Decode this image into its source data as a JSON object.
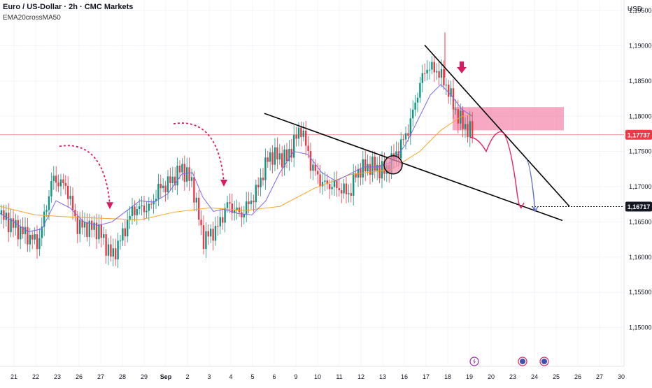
{
  "header": {
    "title": "Euro / US-Dollar · 2h · CMC Markets",
    "indicator": "EMA20crossMA50",
    "currency": "USD"
  },
  "colors": {
    "up": "#089981",
    "down": "#f23645",
    "ema": "#7b68ee",
    "ma": "#f5a623",
    "zone": "#f06292",
    "arrow": "#d81b60",
    "path_pink": "#e91e63",
    "path_blue": "#5c6bc0"
  },
  "chart_data": {
    "type": "candlestick",
    "instrument": "Euro / US-Dollar",
    "timeframe": "2h",
    "ylim": [
      1.1445,
      1.1965
    ],
    "y_ticks": [
      "1,19500",
      "1,19000",
      "1,18500",
      "1,18000",
      "1,17500",
      "1,17000",
      "1,16500",
      "1,16000",
      "1,15500",
      "1,15000"
    ],
    "x_ticks": [
      "21",
      "22",
      "23",
      "26",
      "27",
      "28",
      "29",
      "Sep",
      "2",
      "3",
      "4",
      "5",
      "6",
      "9",
      "10",
      "11",
      "12",
      "13",
      "16",
      "17",
      "18",
      "19",
      "20",
      "23",
      "24",
      "25",
      "26",
      "27",
      "30"
    ],
    "price_tags": [
      {
        "label": "1,17737",
        "value": 1.17737,
        "style": "red"
      },
      {
        "label": "1,16717",
        "value": 1.16717,
        "style": "black"
      }
    ],
    "current_price": 1.17737,
    "target_price": 1.16717,
    "ema20": [
      [
        0,
        1.1662
      ],
      [
        20,
        1.165
      ],
      [
        40,
        1.1636
      ],
      [
        60,
        1.164
      ],
      [
        80,
        1.168
      ],
      [
        100,
        1.167
      ],
      [
        120,
        1.165
      ],
      [
        140,
        1.1645
      ],
      [
        160,
        1.165
      ],
      [
        180,
        1.1665
      ],
      [
        200,
        1.168
      ],
      [
        220,
        1.1678
      ],
      [
        240,
        1.169
      ],
      [
        260,
        1.1718
      ],
      [
        275,
        1.172
      ],
      [
        290,
        1.1685
      ],
      [
        305,
        1.1665
      ],
      [
        320,
        1.1668
      ],
      [
        340,
        1.1662
      ],
      [
        360,
        1.166
      ],
      [
        380,
        1.168
      ],
      [
        400,
        1.172
      ],
      [
        420,
        1.175
      ],
      [
        440,
        1.1746
      ],
      [
        460,
        1.172
      ],
      [
        480,
        1.1708
      ],
      [
        500,
        1.1718
      ],
      [
        520,
        1.1728
      ],
      [
        540,
        1.1728
      ],
      [
        560,
        1.1735
      ],
      [
        580,
        1.176
      ],
      [
        600,
        1.18
      ],
      [
        615,
        1.183
      ],
      [
        630,
        1.1845
      ],
      [
        645,
        1.183
      ],
      [
        660,
        1.181
      ],
      [
        675,
        1.18
      ]
    ],
    "ma50": [
      [
        0,
        1.1672
      ],
      [
        50,
        1.166
      ],
      [
        100,
        1.1657
      ],
      [
        150,
        1.1655
      ],
      [
        200,
        1.1653
      ],
      [
        250,
        1.1664
      ],
      [
        300,
        1.167
      ],
      [
        350,
        1.1666
      ],
      [
        400,
        1.1672
      ],
      [
        450,
        1.1698
      ],
      [
        500,
        1.1717
      ],
      [
        540,
        1.1722
      ],
      [
        560,
        1.1725
      ],
      [
        600,
        1.175
      ],
      [
        630,
        1.178
      ],
      [
        660,
        1.18
      ],
      [
        675,
        1.1802
      ]
    ],
    "zone": {
      "x_from": 647,
      "x_to": 806,
      "y_low": 1.178,
      "y_high": 1.1813
    },
    "triangle_lines": [
      {
        "from": [
          378,
          1.1804
        ],
        "to": [
          804,
          1.1652
        ]
      },
      {
        "from": [
          607,
          1.1901
        ],
        "to": [
          814,
          1.1672
        ]
      }
    ],
    "projection_paths": [
      {
        "color": "pink",
        "points": [
          [
            672,
            1.177
          ],
          [
            695,
            1.175
          ],
          [
            716,
            1.1778
          ],
          [
            738,
            1.17
          ],
          [
            745,
            1.167
          ]
        ]
      },
      {
        "color": "blue",
        "points": [
          [
            751,
            1.174
          ],
          [
            765,
            1.1665
          ]
        ]
      }
    ],
    "highlight_circle": {
      "x": 562,
      "y": 1.1731
    },
    "down_arrows": [
      {
        "x": 157,
        "y": 1.1668
      },
      {
        "x": 320,
        "y": 1.17
      }
    ],
    "marker_arrow": {
      "x": 660,
      "y": 1.185
    },
    "spike": {
      "x": 636,
      "y_top": 1.1919,
      "y_bottom": 1.1855
    },
    "event_icons": [
      {
        "x": 678,
        "kind": "bolt"
      },
      {
        "x": 747,
        "kind": "flag"
      },
      {
        "x": 778,
        "kind": "flag"
      }
    ]
  }
}
